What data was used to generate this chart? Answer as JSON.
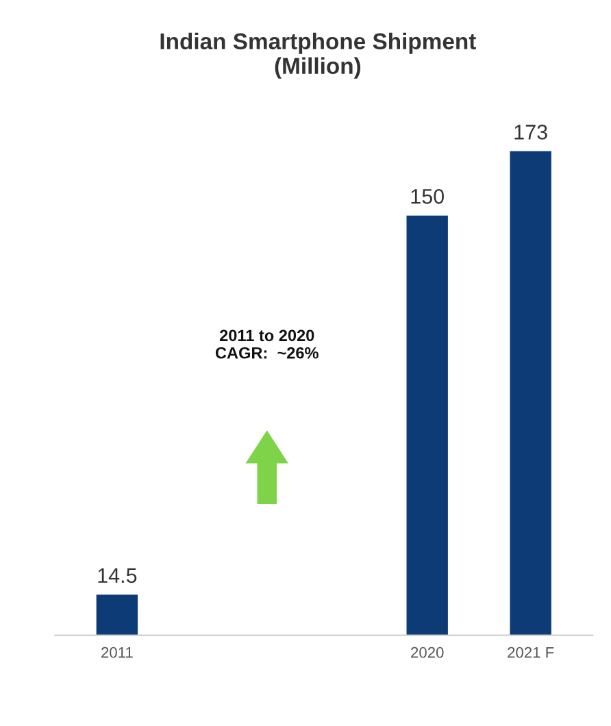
{
  "chart_data": {
    "type": "bar",
    "title": "Indian Smartphone Shipment\n(Million)",
    "categories": [
      "2011",
      null,
      null,
      "2020",
      "2021 F"
    ],
    "values": [
      14.5,
      null,
      null,
      150,
      173
    ],
    "color": "#0d3b75",
    "data_labels": true,
    "annotations": [
      "2011 to 2020\nCAGR:  ~26%"
    ]
  }
}
